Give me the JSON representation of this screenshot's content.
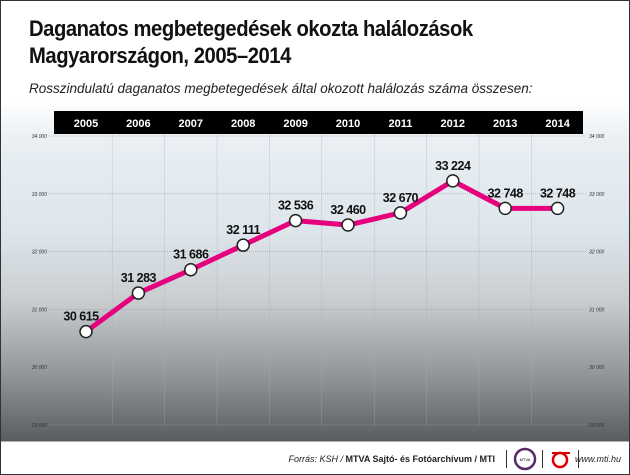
{
  "title_line1": "Daganatos megbetegedések okozta halálozások",
  "title_line2": "Magyarországon, 2005–2014",
  "subtitle": "Rosszindulatú daganatos megbetegedések által okozott halálozás száma összesen:",
  "chart_data": {
    "type": "line",
    "categories": [
      "2005",
      "2006",
      "2007",
      "2008",
      "2009",
      "2010",
      "2011",
      "2012",
      "2013",
      "2014"
    ],
    "values": [
      30615,
      31283,
      31686,
      32111,
      32536,
      32460,
      32670,
      33224,
      32748,
      32748
    ],
    "data_labels": [
      "30 615",
      "31 283",
      "31 686",
      "32 111",
      "32 536",
      "32 460",
      "32 670",
      "33 224",
      "32 748",
      "32 748"
    ],
    "ylim": [
      29000,
      34000
    ],
    "yticks": [
      34000,
      33000,
      32000,
      31000,
      30000,
      29000
    ],
    "ytick_labels": [
      "34 000",
      "33 000",
      "32 000",
      "31 000",
      "30 000",
      "29 000"
    ],
    "grid": true,
    "line_color": "#e6007e"
  },
  "footer": {
    "source_prefix": "Forrás: KSH / ",
    "source_bold": "MTVA Sajtó- és Fotóarchívum / MTI",
    "logo1_text": "MTVA",
    "website": "www.mti.hu"
  }
}
